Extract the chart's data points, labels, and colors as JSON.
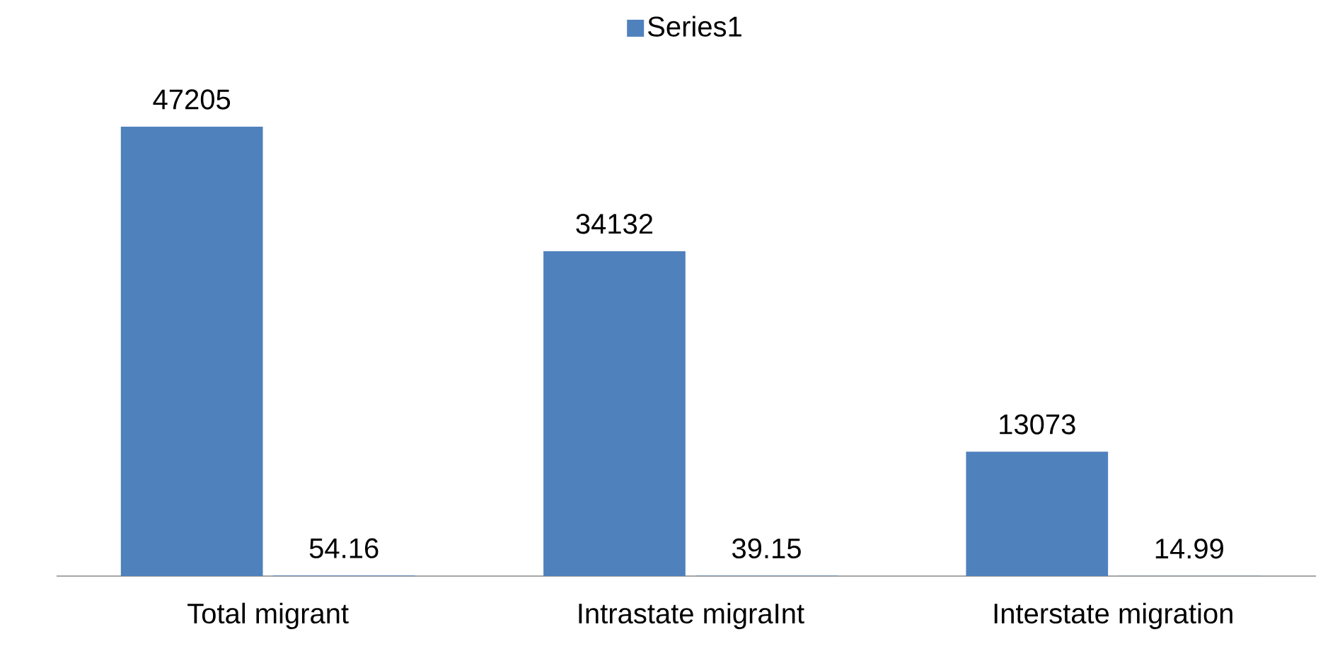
{
  "chart_data": {
    "type": "bar",
    "categories": [
      "Total migrant",
      "Intrastate migraInt",
      "Interstate migration"
    ],
    "series": [
      {
        "name": "Series1",
        "color": "#4f81bd",
        "values": [
          47205,
          34132,
          13073
        ]
      },
      {
        "color": "#4f81bd",
        "values": [
          54.16,
          39.15,
          14.99
        ]
      }
    ],
    "data_labels": true,
    "legend": "top"
  }
}
